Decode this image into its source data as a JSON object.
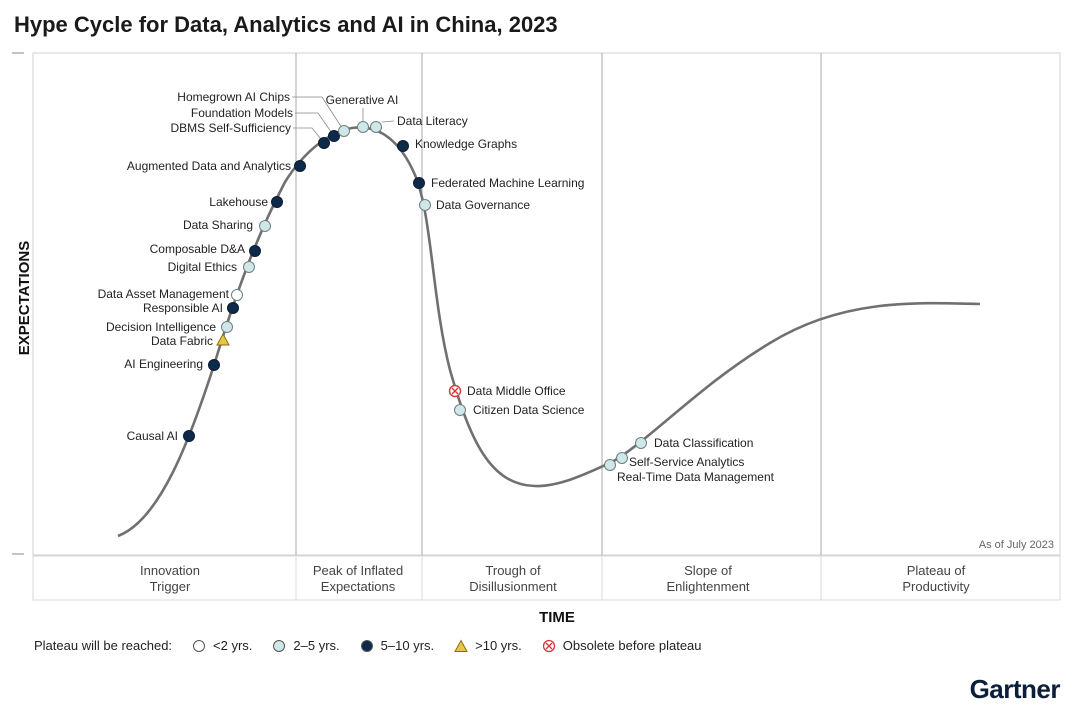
{
  "colors": {
    "lt2": "#ffffff",
    "y2to5": "#cfe7e9",
    "y5to10": "#0e2a4a",
    "gt10": "#e8c54a",
    "obsolete": "#d9383a",
    "curve": "#707070",
    "brand": "#0b1f3a"
  },
  "legend": {
    "title": "Plateau will be reached:",
    "items": [
      {
        "key": "lt2",
        "label": "<2 yrs.",
        "icon": "open-circle-icon"
      },
      {
        "key": "y2to5",
        "label": "2–5 yrs.",
        "icon": "light-circle-icon"
      },
      {
        "key": "y5to10",
        "label": "5–10 yrs.",
        "icon": "dark-circle-icon"
      },
      {
        "key": "gt10",
        "label": ">10 yrs.",
        "icon": "triangle-icon"
      },
      {
        "key": "obsolete",
        "label": "Obsolete before plateau",
        "icon": "crossed-circle-icon"
      }
    ]
  },
  "brand": "Gartner",
  "chart_data": {
    "type": "hype-cycle",
    "title": "Hype Cycle for Data, Analytics and AI in China, 2023",
    "xlabel": "TIME",
    "ylabel": "EXPECTATIONS",
    "note": "As of July 2023",
    "phases": [
      {
        "line1": "Innovation",
        "line2": "Trigger"
      },
      {
        "line1": "Peak of Inflated",
        "line2": "Expectations"
      },
      {
        "line1": "Trough of",
        "line2": "Disillusionment"
      },
      {
        "line1": "Slope of",
        "line2": "Enlightenment"
      },
      {
        "line1": "Plateau of",
        "line2": "Productivity"
      }
    ],
    "technologies": [
      {
        "name": "Causal AI",
        "plateau": "y5to10"
      },
      {
        "name": "AI Engineering",
        "plateau": "y5to10"
      },
      {
        "name": "Data Fabric",
        "plateau": "gt10"
      },
      {
        "name": "Decision Intelligence",
        "plateau": "y2to5"
      },
      {
        "name": "Responsible AI",
        "plateau": "y5to10"
      },
      {
        "name": "Data Asset Management",
        "plateau": "lt2"
      },
      {
        "name": "Digital Ethics",
        "plateau": "y2to5"
      },
      {
        "name": "Composable D&A",
        "plateau": "y5to10"
      },
      {
        "name": "Data Sharing",
        "plateau": "y2to5"
      },
      {
        "name": "Lakehouse",
        "plateau": "y5to10"
      },
      {
        "name": "Augmented Data and Analytics",
        "plateau": "y5to10"
      },
      {
        "name": "DBMS Self-Sufficiency",
        "plateau": "y5to10"
      },
      {
        "name": "Foundation Models",
        "plateau": "y5to10"
      },
      {
        "name": "Homegrown AI Chips",
        "plateau": "y2to5"
      },
      {
        "name": "Generative AI",
        "plateau": "y2to5"
      },
      {
        "name": "Data Literacy",
        "plateau": "y2to5"
      },
      {
        "name": "Knowledge Graphs",
        "plateau": "y5to10"
      },
      {
        "name": "Federated Machine Learning",
        "plateau": "y5to10"
      },
      {
        "name": "Data Governance",
        "plateau": "y2to5"
      },
      {
        "name": "Data Middle Office",
        "plateau": "obsolete"
      },
      {
        "name": "Citizen Data Science",
        "plateau": "y2to5"
      },
      {
        "name": "Data Classification",
        "plateau": "y2to5"
      },
      {
        "name": "Self-Service Analytics",
        "plateau": "y2to5"
      },
      {
        "name": "Real-Time Data Management",
        "plateau": "y2to5"
      }
    ]
  }
}
